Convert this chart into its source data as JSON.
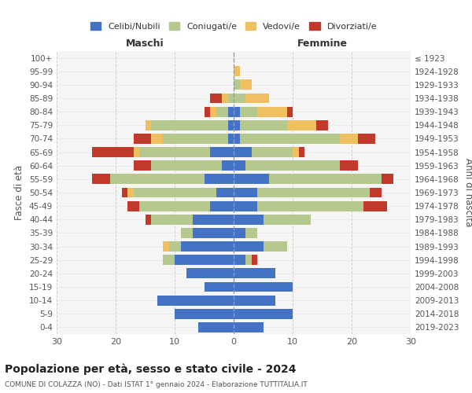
{
  "age_groups": [
    "0-4",
    "5-9",
    "10-14",
    "15-19",
    "20-24",
    "25-29",
    "30-34",
    "35-39",
    "40-44",
    "45-49",
    "50-54",
    "55-59",
    "60-64",
    "65-69",
    "70-74",
    "75-79",
    "80-84",
    "85-89",
    "90-94",
    "95-99",
    "100+"
  ],
  "birth_years": [
    "2019-2023",
    "2014-2018",
    "2009-2013",
    "2004-2008",
    "1999-2003",
    "1994-1998",
    "1989-1993",
    "1984-1988",
    "1979-1983",
    "1974-1978",
    "1969-1973",
    "1964-1968",
    "1959-1963",
    "1954-1958",
    "1949-1953",
    "1944-1948",
    "1939-1943",
    "1934-1938",
    "1929-1933",
    "1924-1928",
    "≤ 1923"
  ],
  "colors": {
    "celibi": "#4472c4",
    "coniugati": "#b5c98e",
    "vedovi": "#f0c060",
    "divorziati": "#c0392b"
  },
  "maschi": {
    "celibi": [
      6,
      10,
      13,
      5,
      8,
      10,
      9,
      7,
      7,
      4,
      3,
      5,
      2,
      4,
      1,
      1,
      1,
      0,
      0,
      0,
      0
    ],
    "coniugati": [
      0,
      0,
      0,
      0,
      0,
      2,
      2,
      2,
      7,
      12,
      14,
      16,
      12,
      12,
      11,
      13,
      2,
      1,
      0,
      0,
      0
    ],
    "vedovi": [
      0,
      0,
      0,
      0,
      0,
      0,
      1,
      0,
      0,
      0,
      1,
      0,
      0,
      1,
      2,
      1,
      1,
      1,
      0,
      0,
      0
    ],
    "divorziati": [
      0,
      0,
      0,
      0,
      0,
      0,
      0,
      0,
      1,
      2,
      1,
      3,
      3,
      7,
      3,
      0,
      1,
      2,
      0,
      0,
      0
    ]
  },
  "femmine": {
    "celibi": [
      5,
      10,
      7,
      10,
      7,
      2,
      5,
      2,
      5,
      4,
      4,
      6,
      2,
      3,
      1,
      1,
      1,
      0,
      0,
      0,
      0
    ],
    "coniugati": [
      0,
      0,
      0,
      0,
      0,
      1,
      4,
      2,
      8,
      18,
      19,
      19,
      16,
      7,
      17,
      8,
      3,
      2,
      1,
      0,
      0
    ],
    "vedovi": [
      0,
      0,
      0,
      0,
      0,
      0,
      0,
      0,
      0,
      0,
      0,
      0,
      0,
      1,
      3,
      5,
      5,
      4,
      2,
      1,
      0
    ],
    "divorziati": [
      0,
      0,
      0,
      0,
      0,
      1,
      0,
      0,
      0,
      4,
      2,
      2,
      3,
      1,
      3,
      2,
      1,
      0,
      0,
      0,
      0
    ]
  },
  "xlim": 30,
  "title": "Popolazione per età, sesso e stato civile - 2024",
  "subtitle": "COMUNE DI COLAZZA (NO) - Dati ISTAT 1° gennaio 2024 - Elaborazione TUTTITALIA.IT",
  "ylabel_left": "Fasce di età",
  "ylabel_right": "Anni di nascita",
  "xlabel_maschi": "Maschi",
  "xlabel_femmine": "Femmine",
  "legend_labels": [
    "Celibi/Nubili",
    "Coniugati/e",
    "Vedovi/e",
    "Divorziati/e"
  ]
}
